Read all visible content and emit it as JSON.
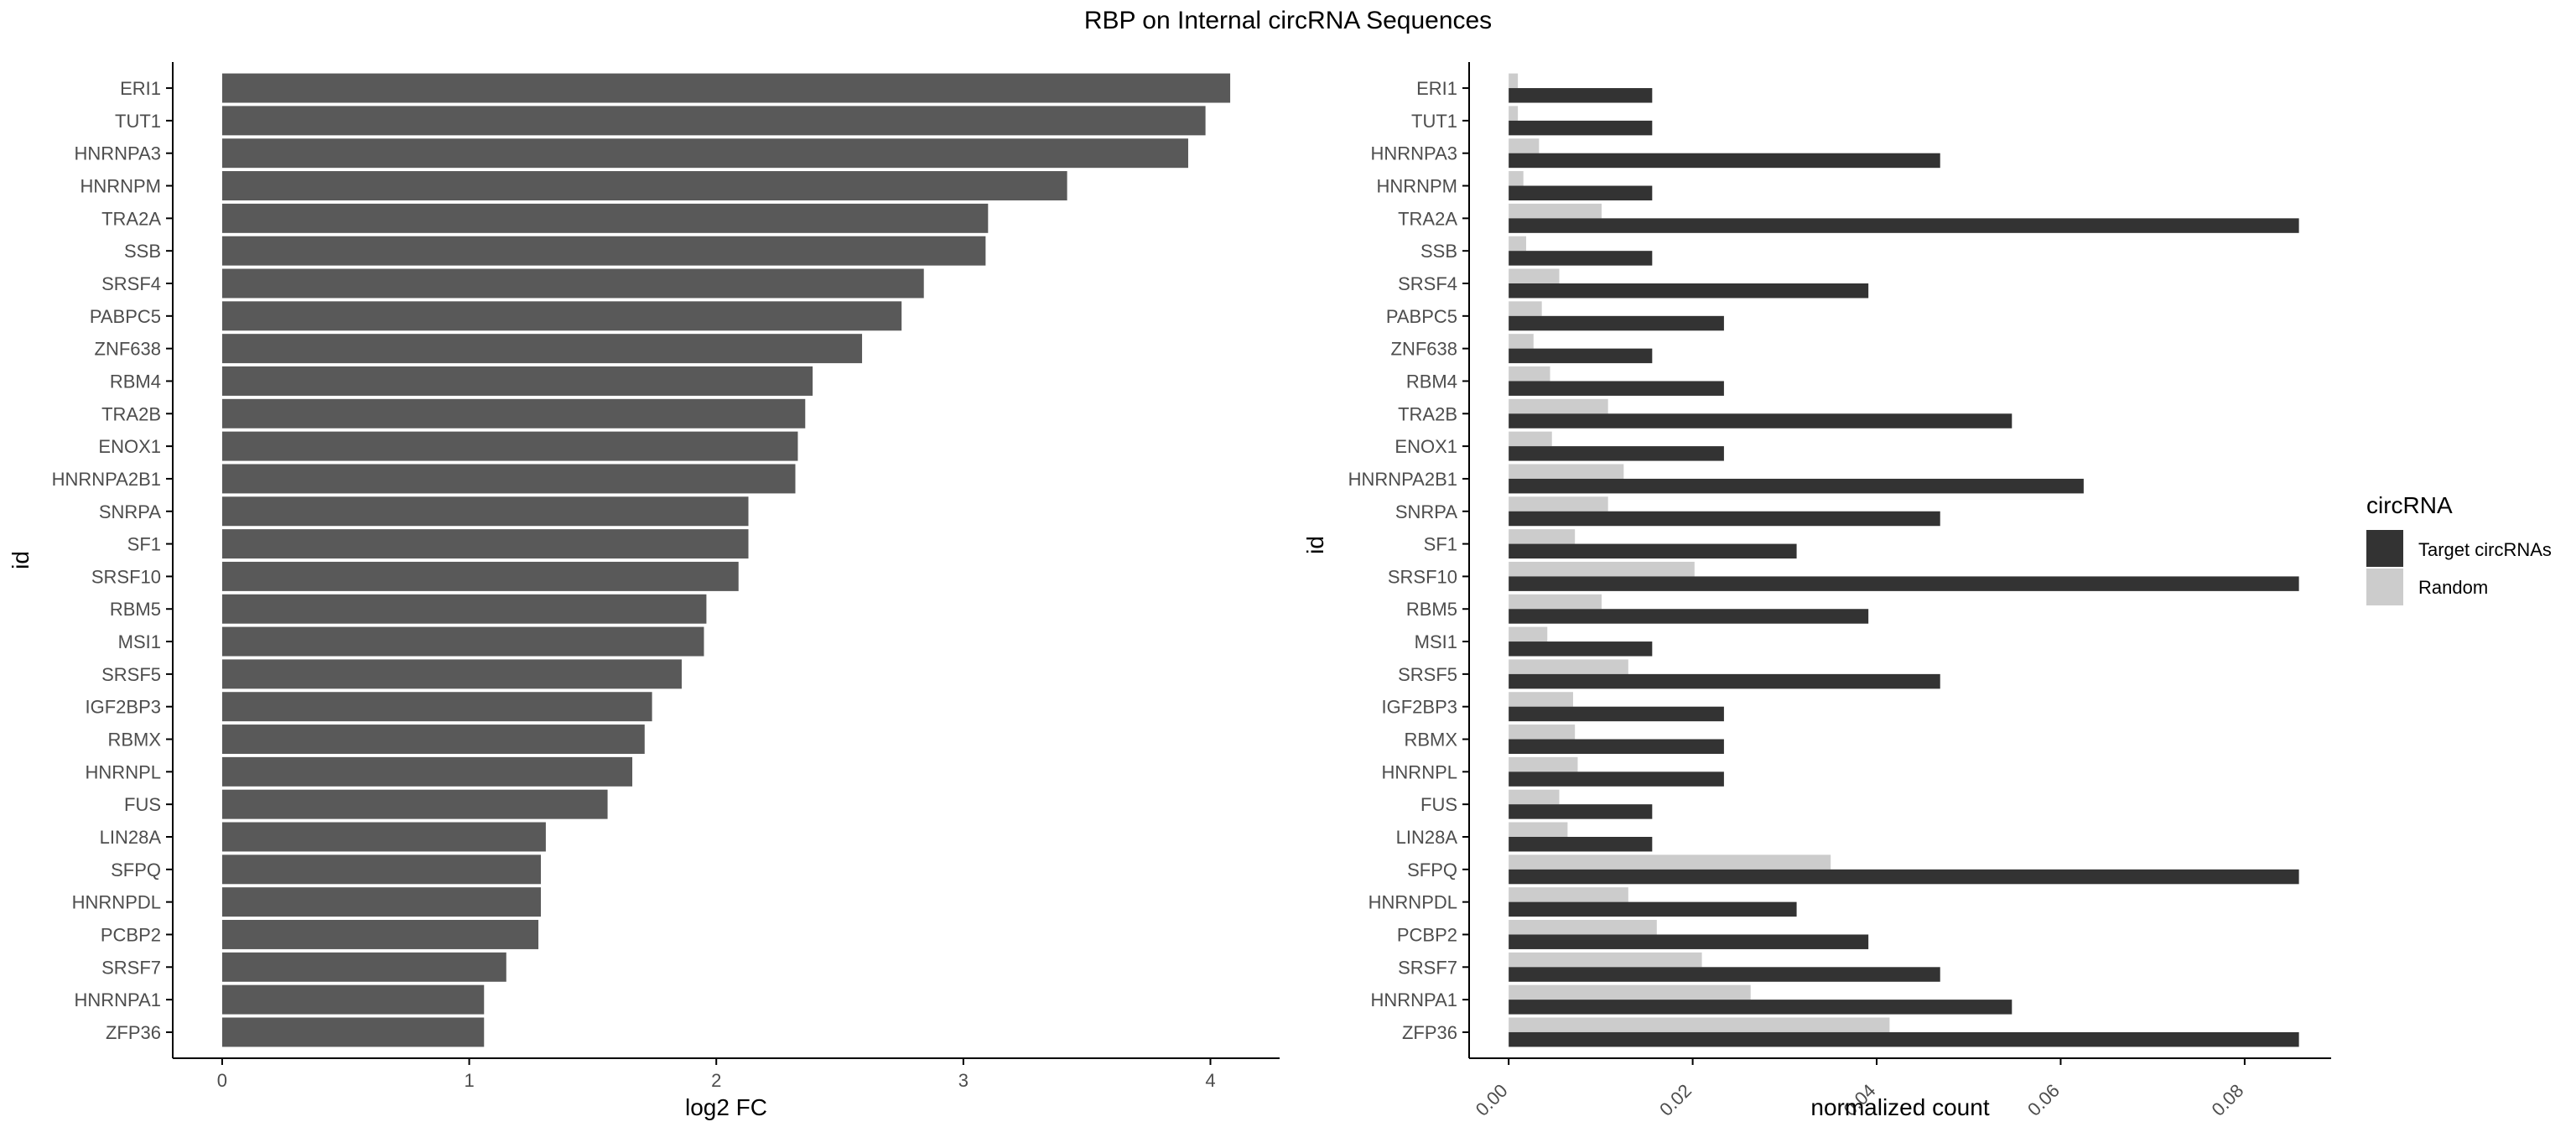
{
  "title": "RBP on Internal circRNA Sequences",
  "colors": {
    "left_bar": "#595959",
    "target": "#333333",
    "random": "#cccccc",
    "axis": "#000000",
    "tick_text": "#4d4d4d"
  },
  "chart_data": [
    {
      "type": "bar",
      "orientation": "horizontal",
      "xlabel": "log2 FC",
      "ylabel": "id",
      "xlim": [
        -0.2,
        4.28
      ],
      "xticks": [
        "0",
        "1",
        "2",
        "3",
        "4"
      ],
      "grid": false,
      "categories": [
        "ERI1",
        "TUT1",
        "HNRNPA3",
        "HNRNPM",
        "TRA2A",
        "SSB",
        "SRSF4",
        "PABPC5",
        "ZNF638",
        "RBM4",
        "TRA2B",
        "ENOX1",
        "HNRNPA2B1",
        "SNRPA",
        "SF1",
        "SRSF10",
        "RBM5",
        "MSI1",
        "SRSF5",
        "IGF2BP3",
        "RBMX",
        "HNRNPL",
        "FUS",
        "LIN28A",
        "SFPQ",
        "HNRNPDL",
        "PCBP2",
        "SRSF7",
        "HNRNPA1",
        "ZFP36"
      ],
      "values": [
        4.08,
        3.98,
        3.91,
        3.42,
        3.1,
        3.09,
        2.84,
        2.75,
        2.59,
        2.39,
        2.36,
        2.33,
        2.32,
        2.13,
        2.13,
        2.09,
        1.96,
        1.95,
        1.86,
        1.74,
        1.71,
        1.66,
        1.56,
        1.31,
        1.29,
        1.29,
        1.28,
        1.15,
        1.06,
        1.06
      ]
    },
    {
      "type": "bar",
      "orientation": "horizontal",
      "grouped": true,
      "xlabel": "normalized count",
      "ylabel": "id",
      "xlim": [
        -0.0043,
        0.0894
      ],
      "xticks": [
        "0.00",
        "0.02",
        "0.04",
        "0.06",
        "0.08"
      ],
      "grid": false,
      "legend": {
        "title": "circRNA",
        "position": "right"
      },
      "categories": [
        "ERI1",
        "TUT1",
        "HNRNPA3",
        "HNRNPM",
        "TRA2A",
        "SSB",
        "SRSF4",
        "PABPC5",
        "ZNF638",
        "RBM4",
        "TRA2B",
        "ENOX1",
        "HNRNPA2B1",
        "SNRPA",
        "SF1",
        "SRSF10",
        "RBM5",
        "MSI1",
        "SRSF5",
        "IGF2BP3",
        "RBMX",
        "HNRNPL",
        "FUS",
        "LIN28A",
        "SFPQ",
        "HNRNPDL",
        "PCBP2",
        "SRSF7",
        "HNRNPA1",
        "ZFP36"
      ],
      "series": [
        {
          "name": "Target circRNAs",
          "values": [
            0.0156,
            0.0156,
            0.0469,
            0.0156,
            0.0859,
            0.0156,
            0.0391,
            0.0234,
            0.0156,
            0.0234,
            0.0547,
            0.0234,
            0.0625,
            0.0469,
            0.0313,
            0.0859,
            0.0391,
            0.0156,
            0.0469,
            0.0234,
            0.0234,
            0.0234,
            0.0156,
            0.0156,
            0.0859,
            0.0313,
            0.0391,
            0.0469,
            0.0547,
            0.0859
          ]
        },
        {
          "name": "Random",
          "values": [
            0.001,
            0.001,
            0.0033,
            0.0016,
            0.0101,
            0.0019,
            0.0055,
            0.0036,
            0.0027,
            0.0045,
            0.0108,
            0.0047,
            0.0125,
            0.0108,
            0.0072,
            0.0202,
            0.0101,
            0.0042,
            0.013,
            0.007,
            0.0072,
            0.0075,
            0.0055,
            0.0064,
            0.035,
            0.013,
            0.0161,
            0.021,
            0.0263,
            0.0414
          ]
        }
      ]
    }
  ]
}
